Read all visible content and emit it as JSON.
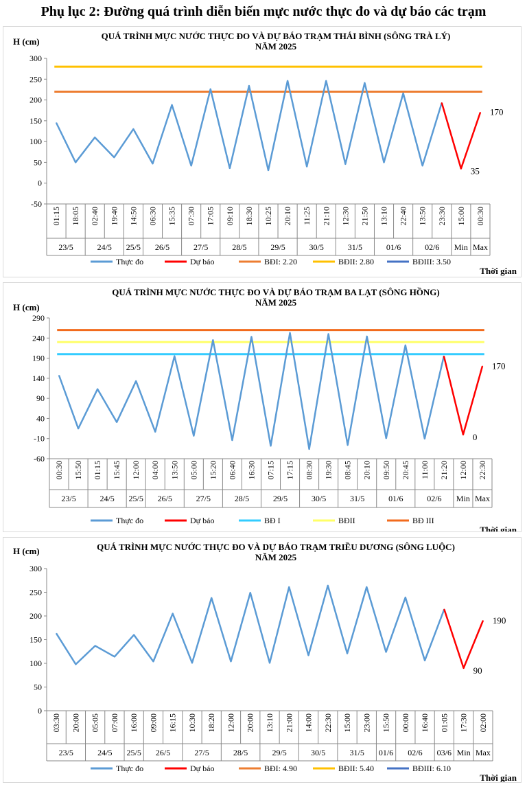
{
  "page_title": "Phụ lục 2: Đường quá trình diễn biến mực nước thực đo và dự báo các trạm",
  "chart_data": [
    {
      "type": "line",
      "title": "QUÁ TRÌNH MỰC NƯỚC THỰC ĐO VÀ DỰ BÁO TRẠM THÁI BÌNH (SÔNG TRÀ LÝ)",
      "subtitle": "NĂM 2025",
      "ylabel": "H (cm)",
      "xlabel": "Thời gian",
      "ylim": [
        -50,
        300
      ],
      "yticks": [
        -50,
        0,
        50,
        100,
        150,
        200,
        250,
        300
      ],
      "times": [
        "01:15",
        "18:05",
        "02:40",
        "19:40",
        "14:50",
        "06:30",
        "15:35",
        "07:30",
        "17:05",
        "09:10",
        "18:30",
        "10:25",
        "20:10",
        "11:25",
        "21:10",
        "12:30",
        "21:50",
        "13:10",
        "22:40",
        "13:50",
        "23:30",
        "15:00",
        "00:30"
      ],
      "dates": [
        {
          "label": "23/5",
          "span": 2
        },
        {
          "label": "24/5",
          "span": 2
        },
        {
          "label": "25/5",
          "span": 1
        },
        {
          "label": "26/5",
          "span": 2
        },
        {
          "label": "27/5",
          "span": 2
        },
        {
          "label": "28/5",
          "span": 2
        },
        {
          "label": "29/5",
          "span": 2
        },
        {
          "label": "30/5",
          "span": 2
        },
        {
          "label": "31/5",
          "span": 2
        },
        {
          "label": "01/6",
          "span": 2
        },
        {
          "label": "02/6",
          "span": 2
        },
        {
          "label": "Min",
          "span": 1
        },
        {
          "label": "Max",
          "span": 1
        }
      ],
      "observed": {
        "name": "Thực đo",
        "color": "#5B9BD5",
        "values": [
          145,
          50,
          110,
          62,
          130,
          47,
          188,
          42,
          226,
          36,
          234,
          31,
          246,
          40,
          246,
          46,
          241,
          50,
          216,
          42,
          193
        ]
      },
      "forecast": {
        "name": "Dự báo",
        "color": "#FF0000",
        "start_index": 20,
        "values": [
          193,
          35,
          170
        ]
      },
      "annotations": [
        {
          "index": 21,
          "value": 35,
          "text": "35"
        },
        {
          "index": 22,
          "value": 170,
          "text": "170"
        }
      ],
      "thresholds": [
        {
          "name": "BĐI: 2.20",
          "value": 220,
          "color": "#ED7D31",
          "drawn": true
        },
        {
          "name": "BĐII: 2.80",
          "value": 280,
          "color": "#FFC000",
          "drawn": true
        },
        {
          "name": "BĐIII: 3.50",
          "value": 350,
          "color": "#4472C4",
          "drawn": false
        }
      ]
    },
    {
      "type": "line",
      "title": "QUÁ TRÌNH MỰC NƯỚC THỰC ĐO VÀ DỰ BÁO TRẠM BA LẠT (SÔNG HỒNG)",
      "subtitle": "NĂM 2025",
      "ylabel": "H (cm)",
      "xlabel": "Thời gian",
      "ylim": [
        -60,
        290
      ],
      "yticks": [
        -60,
        -10,
        40,
        90,
        140,
        190,
        240,
        290
      ],
      "times": [
        "00:30",
        "15:50",
        "01:15",
        "15:45",
        "12:00",
        "04:00",
        "13:50",
        "05:00",
        "15:20",
        "06:40",
        "16:30",
        "07:15",
        "17:15",
        "08:30",
        "19:30",
        "08:45",
        "20:10",
        "09:50",
        "20:45",
        "11:00",
        "21:20",
        "12:00",
        "22:30"
      ],
      "dates": [
        {
          "label": "23/5",
          "span": 2
        },
        {
          "label": "24/5",
          "span": 2
        },
        {
          "label": "25/5",
          "span": 1
        },
        {
          "label": "26/5",
          "span": 2
        },
        {
          "label": "27/5",
          "span": 2
        },
        {
          "label": "28/5",
          "span": 2
        },
        {
          "label": "29/5",
          "span": 2
        },
        {
          "label": "30/5",
          "span": 2
        },
        {
          "label": "31/5",
          "span": 2
        },
        {
          "label": "01/6",
          "span": 2
        },
        {
          "label": "02/6",
          "span": 2
        },
        {
          "label": "Min",
          "span": 1
        },
        {
          "label": "Max",
          "span": 1
        }
      ],
      "observed": {
        "name": "Thực đo",
        "color": "#5B9BD5",
        "values": [
          147,
          15,
          113,
          31,
          133,
          7,
          195,
          -3,
          235,
          -14,
          243,
          -28,
          253,
          -36,
          250,
          -26,
          244,
          -9,
          222,
          -10,
          195
        ]
      },
      "forecast": {
        "name": "Dự báo",
        "color": "#FF0000",
        "start_index": 20,
        "values": [
          195,
          0,
          170
        ]
      },
      "annotations": [
        {
          "index": 21,
          "value": 0,
          "text": "0"
        },
        {
          "index": 22,
          "value": 170,
          "text": "170"
        }
      ],
      "thresholds": [
        {
          "name": "BĐ I",
          "value": 200,
          "color": "#33CCFF",
          "drawn": true
        },
        {
          "name": "BĐII",
          "value": 230,
          "color": "#FFFF66",
          "drawn": true
        },
        {
          "name": "BĐ III",
          "value": 260,
          "color": "#F26B1D",
          "drawn": true
        }
      ]
    },
    {
      "type": "line",
      "title": "QUÁ TRÌNH MỰC NƯỚC THỰC ĐO VÀ DỰ BÁO TRẠM TRIỀU DƯƠNG  (SÔNG LUỘC)",
      "subtitle": "NĂM 2025",
      "ylabel": "H (cm)",
      "xlabel": "Thời gian",
      "ylim": [
        0,
        300
      ],
      "yticks": [
        0,
        50,
        100,
        150,
        200,
        250,
        300
      ],
      "times": [
        "03:30",
        "20:00",
        "05:05",
        "07:00",
        "16:00",
        "09:00",
        "16:15",
        "10:30",
        "18:20",
        "12:00",
        "20:00",
        "13:10",
        "21:00",
        "14:00",
        "22:30",
        "15:00",
        "23:00",
        "15:50",
        "00:00",
        "16:40",
        "01:05",
        "17:30",
        "02:00"
      ],
      "dates": [
        {
          "label": "23/5",
          "span": 2
        },
        {
          "label": "24/5",
          "span": 2
        },
        {
          "label": "25/5",
          "span": 1
        },
        {
          "label": "26/5",
          "span": 2
        },
        {
          "label": "27/5",
          "span": 2
        },
        {
          "label": "28/5",
          "span": 2
        },
        {
          "label": "29/5",
          "span": 2
        },
        {
          "label": "30/5",
          "span": 2
        },
        {
          "label": "31/5",
          "span": 2
        },
        {
          "label": "01/6",
          "span": 1
        },
        {
          "label": "02/6",
          "span": 2
        },
        {
          "label": "03/6",
          "span": 1
        },
        {
          "label": "Min",
          "span": 1
        },
        {
          "label": "Max",
          "span": 1
        }
      ],
      "observed": {
        "name": "Thực đo",
        "color": "#5B9BD5",
        "values": [
          163,
          98,
          137,
          114,
          160,
          104,
          205,
          101,
          238,
          104,
          249,
          101,
          261,
          117,
          264,
          121,
          261,
          124,
          239,
          106,
          214
        ]
      },
      "forecast": {
        "name": "Dự báo",
        "color": "#FF0000",
        "start_index": 20,
        "values": [
          214,
          90,
          190
        ]
      },
      "annotations": [
        {
          "index": 21,
          "value": 90,
          "text": "90"
        },
        {
          "index": 22,
          "value": 190,
          "text": "190"
        }
      ],
      "thresholds": [
        {
          "name": "BĐI: 4.90",
          "value": 490,
          "color": "#ED7D31",
          "drawn": false
        },
        {
          "name": "BĐII: 5.40",
          "value": 540,
          "color": "#FFC000",
          "drawn": false
        },
        {
          "name": "BĐIII: 6.10",
          "value": 610,
          "color": "#4472C4",
          "drawn": false
        }
      ]
    }
  ]
}
